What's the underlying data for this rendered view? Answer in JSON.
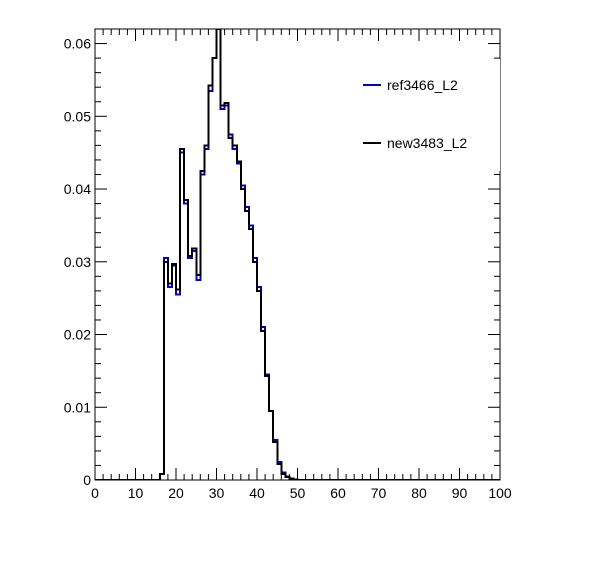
{
  "chart_data": {
    "type": "histogram",
    "title": "",
    "xlabel": "",
    "ylabel": "",
    "xlim": [
      0,
      100
    ],
    "ylim": [
      0,
      0.062
    ],
    "x_ticks": [
      "0",
      "10",
      "20",
      "30",
      "40",
      "50",
      "60",
      "70",
      "80",
      "90",
      "100"
    ],
    "y_ticks": [
      "0",
      "0.01",
      "0.02",
      "0.03",
      "0.04",
      "0.05",
      "0.06"
    ],
    "bin_width": 1,
    "legend": {
      "placement": "top-right"
    },
    "series": [
      {
        "name": "ref3466_L2",
        "color": "#0000cc",
        "values": [
          0,
          0,
          0,
          0,
          0,
          0,
          0,
          0,
          0,
          0,
          0,
          0,
          0,
          0,
          0,
          0,
          0.0008,
          0.0305,
          0.0265,
          0.0295,
          0.0255,
          0.045,
          0.038,
          0.0305,
          0.0315,
          0.0275,
          0.042,
          0.0455,
          0.0535,
          0.058,
          0.064,
          0.051,
          0.0515,
          0.0475,
          0.0455,
          0.0435,
          0.0405,
          0.0375,
          0.035,
          0.0305,
          0.0265,
          0.021,
          0.0145,
          0.0095,
          0.0055,
          0.0025,
          0.001,
          0.0005,
          0.0002,
          0.0001,
          0,
          0,
          0,
          0,
          0,
          0,
          0,
          0,
          0,
          0,
          0,
          0,
          0,
          0,
          0,
          0,
          0,
          0,
          0,
          0,
          0,
          0,
          0,
          0,
          0,
          0,
          0,
          0,
          0,
          0,
          0,
          0,
          0,
          0,
          0,
          0,
          0,
          0,
          0,
          0,
          0,
          0,
          0,
          0,
          0,
          0,
          0,
          0,
          0,
          0
        ]
      },
      {
        "name": "new3483_L2",
        "color": "#000000",
        "values": [
          0,
          0,
          0,
          0,
          0,
          0,
          0,
          0,
          0,
          0,
          0,
          0,
          0,
          0,
          0,
          0,
          0.0008,
          0.03,
          0.027,
          0.0297,
          0.0262,
          0.0455,
          0.0385,
          0.0308,
          0.0318,
          0.0282,
          0.0425,
          0.046,
          0.0542,
          0.058,
          0.0645,
          0.0515,
          0.0518,
          0.047,
          0.046,
          0.0438,
          0.04,
          0.037,
          0.0345,
          0.03,
          0.026,
          0.0205,
          0.0143,
          0.0095,
          0.0052,
          0.0022,
          0.0008,
          0.0004,
          0.0002,
          0.0001,
          0,
          0,
          0,
          0,
          0,
          0,
          0,
          0,
          0,
          0,
          0,
          0,
          0,
          0,
          0,
          0,
          0,
          0,
          0,
          0,
          0,
          0,
          0,
          0,
          0,
          0,
          0,
          0,
          0,
          0,
          0,
          0,
          0,
          0,
          0,
          0,
          0,
          0,
          0,
          0,
          0,
          0,
          0,
          0,
          0,
          0,
          0,
          0,
          0,
          0
        ]
      }
    ]
  }
}
